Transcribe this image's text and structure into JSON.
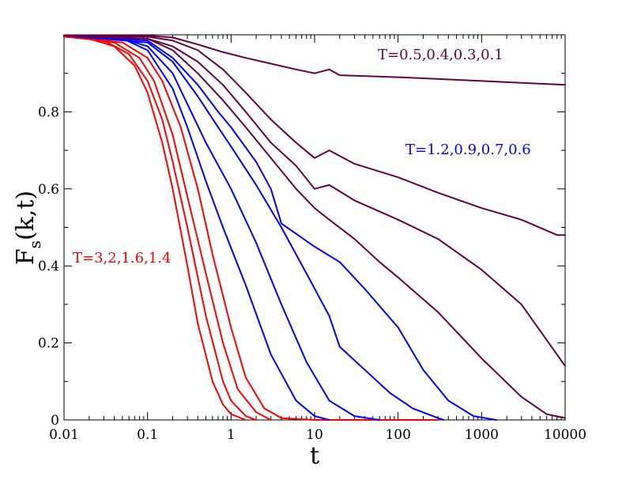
{
  "chart_data": {
    "type": "line",
    "title": "",
    "xlabel": "t",
    "ylabel_main": "F",
    "ylabel_sub": "s",
    "ylabel_tail": "(k,t)",
    "xscale": "log",
    "xlim": [
      0.01,
      10000
    ],
    "ylim": [
      0,
      1
    ],
    "x_ticks": [
      0.01,
      0.1,
      1,
      10,
      100,
      1000,
      10000
    ],
    "x_tick_labels": [
      "0.01",
      "0.1",
      "1",
      "10",
      "100",
      "1000",
      "10000"
    ],
    "y_ticks": [
      0,
      0.2,
      0.4,
      0.6,
      0.8
    ],
    "y_tick_labels": [
      "0",
      "0.2",
      "0.4",
      "0.6",
      "0.8"
    ],
    "colors": {
      "high_T": "#ff0000",
      "mid_T": "#0000ff",
      "low_T": "#660044"
    },
    "annotations": [
      {
        "text": "T=0.5,0.4,0.3,0.1",
        "group": "low_T"
      },
      {
        "text": "T=1.2,0.9,0.7,0.6",
        "group": "mid_T"
      },
      {
        "text": "T=3,2,1.6,1.4",
        "group": "high_T"
      }
    ],
    "series": [
      {
        "name": "T=3",
        "group": "high_T",
        "points": [
          [
            0.01,
            0.995
          ],
          [
            0.02,
            0.99
          ],
          [
            0.04,
            0.97
          ],
          [
            0.07,
            0.92
          ],
          [
            0.1,
            0.85
          ],
          [
            0.15,
            0.72
          ],
          [
            0.2,
            0.6
          ],
          [
            0.3,
            0.4
          ],
          [
            0.4,
            0.25
          ],
          [
            0.6,
            0.1
          ],
          [
            0.8,
            0.04
          ],
          [
            1,
            0.015
          ],
          [
            1.5,
            0
          ]
        ]
      },
      {
        "name": "T=2",
        "group": "high_T",
        "points": [
          [
            0.01,
            0.995
          ],
          [
            0.03,
            0.985
          ],
          [
            0.06,
            0.95
          ],
          [
            0.1,
            0.88
          ],
          [
            0.15,
            0.78
          ],
          [
            0.2,
            0.67
          ],
          [
            0.3,
            0.5
          ],
          [
            0.5,
            0.27
          ],
          [
            0.8,
            0.1
          ],
          [
            1,
            0.05
          ],
          [
            1.5,
            0.01
          ],
          [
            2,
            0
          ]
        ]
      },
      {
        "name": "T=1.6",
        "group": "high_T",
        "points": [
          [
            0.01,
            0.997
          ],
          [
            0.04,
            0.98
          ],
          [
            0.08,
            0.94
          ],
          [
            0.12,
            0.88
          ],
          [
            0.2,
            0.74
          ],
          [
            0.3,
            0.58
          ],
          [
            0.5,
            0.38
          ],
          [
            0.8,
            0.2
          ],
          [
            1.2,
            0.08
          ],
          [
            2,
            0.02
          ],
          [
            3,
            0
          ]
        ]
      },
      {
        "name": "T=1.4",
        "group": "high_T",
        "points": [
          [
            0.01,
            0.997
          ],
          [
            0.05,
            0.98
          ],
          [
            0.1,
            0.94
          ],
          [
            0.15,
            0.88
          ],
          [
            0.25,
            0.76
          ],
          [
            0.4,
            0.6
          ],
          [
            0.6,
            0.43
          ],
          [
            1,
            0.24
          ],
          [
            1.5,
            0.11
          ],
          [
            2.5,
            0.03
          ],
          [
            4,
            0.005
          ],
          [
            10,
            0
          ],
          [
            40,
            0
          ],
          [
            300,
            0
          ]
        ]
      },
      {
        "name": "T=1.2",
        "group": "mid_T",
        "points": [
          [
            0.01,
            0.998
          ],
          [
            0.05,
            0.99
          ],
          [
            0.1,
            0.96
          ],
          [
            0.2,
            0.86
          ],
          [
            0.3,
            0.76
          ],
          [
            0.5,
            0.62
          ],
          [
            0.8,
            0.5
          ],
          [
            1.5,
            0.35
          ],
          [
            3,
            0.17
          ],
          [
            6,
            0.05
          ],
          [
            10,
            0.01
          ],
          [
            15,
            0
          ]
        ]
      },
      {
        "name": "T=0.9",
        "group": "mid_T",
        "points": [
          [
            0.01,
            0.998
          ],
          [
            0.05,
            0.99
          ],
          [
            0.1,
            0.97
          ],
          [
            0.2,
            0.9
          ],
          [
            0.3,
            0.82
          ],
          [
            0.5,
            0.72
          ],
          [
            1,
            0.6
          ],
          [
            2,
            0.46
          ],
          [
            4,
            0.3
          ],
          [
            8,
            0.15
          ],
          [
            15,
            0.05
          ],
          [
            30,
            0.01
          ],
          [
            60,
            0
          ]
        ]
      },
      {
        "name": "T=0.7",
        "group": "mid_T",
        "points": [
          [
            0.01,
            0.998
          ],
          [
            0.1,
            0.98
          ],
          [
            0.2,
            0.93
          ],
          [
            0.4,
            0.84
          ],
          [
            0.7,
            0.76
          ],
          [
            1,
            0.71
          ],
          [
            2,
            0.61
          ],
          [
            4,
            0.5
          ],
          [
            8,
            0.38
          ],
          [
            15,
            0.27
          ],
          [
            20,
            0.19
          ],
          [
            40,
            0.13
          ],
          [
            80,
            0.07
          ],
          [
            150,
            0.03
          ],
          [
            300,
            0.005
          ],
          [
            350,
            0
          ]
        ]
      },
      {
        "name": "T=0.6",
        "group": "mid_T",
        "points": [
          [
            0.01,
            0.998
          ],
          [
            0.1,
            0.985
          ],
          [
            0.2,
            0.94
          ],
          [
            0.4,
            0.87
          ],
          [
            0.7,
            0.8
          ],
          [
            1,
            0.76
          ],
          [
            2,
            0.67
          ],
          [
            3,
            0.6
          ],
          [
            4,
            0.51
          ],
          [
            10,
            0.45
          ],
          [
            20,
            0.41
          ],
          [
            40,
            0.34
          ],
          [
            100,
            0.24
          ],
          [
            200,
            0.13
          ],
          [
            400,
            0.05
          ],
          [
            800,
            0.01
          ],
          [
            1500,
            0
          ]
        ]
      },
      {
        "name": "T=0.5",
        "group": "low_T",
        "points": [
          [
            0.01,
            0.998
          ],
          [
            0.1,
            0.99
          ],
          [
            0.2,
            0.96
          ],
          [
            0.4,
            0.9
          ],
          [
            0.8,
            0.83
          ],
          [
            1.5,
            0.76
          ],
          [
            3,
            0.68
          ],
          [
            6,
            0.6
          ],
          [
            10,
            0.55
          ],
          [
            15,
            0.52
          ],
          [
            30,
            0.47
          ],
          [
            60,
            0.41
          ],
          [
            100,
            0.37
          ],
          [
            300,
            0.28
          ],
          [
            1000,
            0.16
          ],
          [
            3000,
            0.06
          ],
          [
            6000,
            0.015
          ],
          [
            10000,
            0.005
          ]
        ]
      },
      {
        "name": "T=0.4",
        "group": "low_T",
        "points": [
          [
            0.01,
            0.998
          ],
          [
            0.1,
            0.99
          ],
          [
            0.2,
            0.97
          ],
          [
            0.4,
            0.93
          ],
          [
            0.8,
            0.87
          ],
          [
            1.5,
            0.8
          ],
          [
            3,
            0.72
          ],
          [
            6,
            0.66
          ],
          [
            10,
            0.6
          ],
          [
            15,
            0.61
          ],
          [
            30,
            0.57
          ],
          [
            100,
            0.52
          ],
          [
            300,
            0.47
          ],
          [
            1000,
            0.39
          ],
          [
            3000,
            0.3
          ],
          [
            10000,
            0.14
          ]
        ]
      },
      {
        "name": "T=0.3",
        "group": "low_T",
        "points": [
          [
            0.01,
            0.998
          ],
          [
            0.1,
            0.995
          ],
          [
            0.2,
            0.985
          ],
          [
            0.4,
            0.96
          ],
          [
            0.8,
            0.91
          ],
          [
            1.5,
            0.85
          ],
          [
            3,
            0.78
          ],
          [
            6,
            0.72
          ],
          [
            10,
            0.68
          ],
          [
            15,
            0.7
          ],
          [
            30,
            0.665
          ],
          [
            100,
            0.63
          ],
          [
            300,
            0.59
          ],
          [
            1000,
            0.55
          ],
          [
            3000,
            0.52
          ],
          [
            8000,
            0.48
          ],
          [
            10000,
            0.48
          ]
        ]
      },
      {
        "name": "T=0.1",
        "group": "low_T",
        "points": [
          [
            0.01,
            0.999
          ],
          [
            0.1,
            0.998
          ],
          [
            0.2,
            0.993
          ],
          [
            0.4,
            0.975
          ],
          [
            0.8,
            0.955
          ],
          [
            1.5,
            0.94
          ],
          [
            3,
            0.925
          ],
          [
            6,
            0.91
          ],
          [
            10,
            0.9
          ],
          [
            15,
            0.91
          ],
          [
            20,
            0.895
          ],
          [
            100,
            0.89
          ],
          [
            1000,
            0.88
          ],
          [
            10000,
            0.87
          ]
        ]
      }
    ]
  }
}
